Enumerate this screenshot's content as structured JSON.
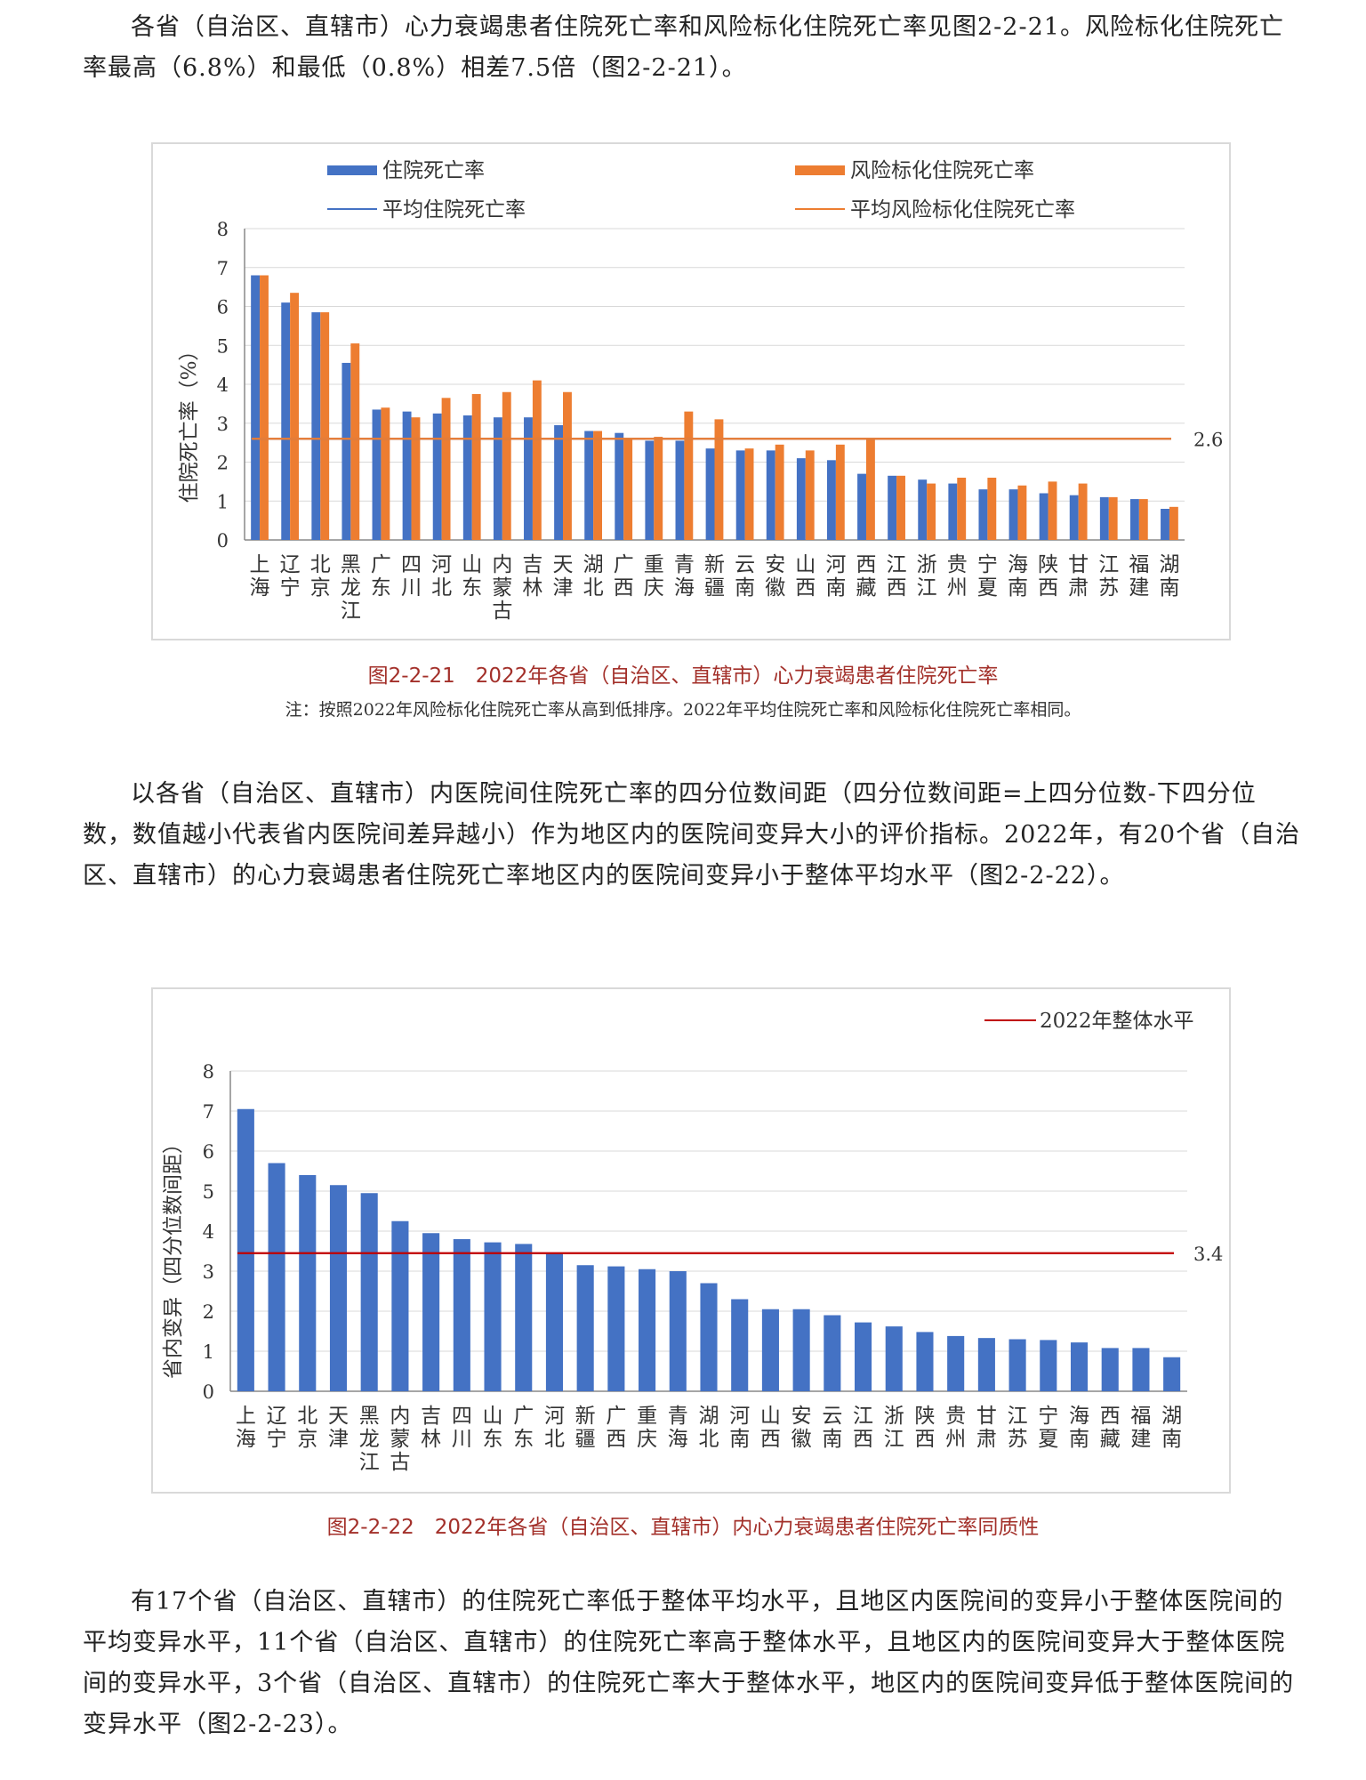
{
  "paragraphs": {
    "p1": "各省（自治区、直辖市）心力衰竭患者住院死亡率和风险标化住院死亡率见图2-2-21。风险标化住院死亡率最高（6.8%）和最低（0.8%）相差7.5倍（图2-2-21）。",
    "p2": "以各省（自治区、直辖市）内医院间住院死亡率的四分位数间距（四分位数间距=上四分位数-下四分位数，数值越小代表省内医院间差异越小）作为地区内的医院间变异大小的评价指标。2022年，有20个省（自治区、直辖市）的心力衰竭患者住院死亡率地区内的医院间变异小于整体平均水平（图2-2-22）。",
    "p3": "有17个省（自治区、直辖市）的住院死亡率低于整体平均水平，且地区内医院间的变异小于整体医院间的平均变异水平，11个省（自治区、直辖市）的住院死亡率高于整体水平，且地区内的医院间变异大于整体医院间的变异水平，3个省（自治区、直辖市）的住院死亡率大于整体水平，地区内的医院间变异低于整体医院间的变异水平（图2-2-23）。"
  },
  "figure1": {
    "caption": "图2-2-21　2022年各省（自治区、直辖市）心力衰竭患者住院死亡率",
    "note": "注：按照2022年风险标化住院死亡率从高到低排序。2022年平均住院死亡率和风险标化住院死亡率相同。"
  },
  "figure2": {
    "caption": "图2-2-22　2022年各省（自治区、直辖市）内心力衰竭患者住院死亡率同质性"
  },
  "colors": {
    "blue": "#4472c4",
    "orange": "#ed7d31",
    "red": "#c00000",
    "caption": "#a3302a"
  },
  "chart_data": [
    {
      "type": "bar",
      "ylabel": "住院死亡率（%）",
      "ylim": [
        0,
        8
      ],
      "yticks": [
        0,
        1,
        2,
        3,
        4,
        5,
        6,
        7,
        8
      ],
      "grid": true,
      "legend_position": "top",
      "categories": [
        "上海",
        "辽宁",
        "北京",
        "黑龙江",
        "广东",
        "四川",
        "河北",
        "山东",
        "内蒙古",
        "吉林",
        "天津",
        "湖北",
        "广西",
        "重庆",
        "青海",
        "新疆",
        "云南",
        "安徽",
        "山西",
        "河南",
        "西藏",
        "江西",
        "浙江",
        "贵州",
        "宁夏",
        "海南",
        "陕西",
        "甘肃",
        "江苏",
        "福建",
        "湖南"
      ],
      "series": [
        {
          "name": "住院死亡率",
          "values": [
            6.8,
            6.1,
            5.85,
            4.55,
            3.35,
            3.3,
            3.25,
            3.2,
            3.15,
            3.15,
            2.95,
            2.8,
            2.75,
            2.55,
            2.55,
            2.35,
            2.3,
            2.3,
            2.1,
            2.05,
            1.7,
            1.65,
            1.55,
            1.45,
            1.3,
            1.3,
            1.2,
            1.15,
            1.1,
            1.05,
            0.8
          ]
        },
        {
          "name": "风险标化住院死亡率",
          "values": [
            6.8,
            6.35,
            5.85,
            5.05,
            3.4,
            3.15,
            3.65,
            3.75,
            3.8,
            4.1,
            3.8,
            2.8,
            2.6,
            2.65,
            3.3,
            3.1,
            2.35,
            2.45,
            2.3,
            2.45,
            2.6,
            1.65,
            1.45,
            1.6,
            1.6,
            1.4,
            1.5,
            1.45,
            1.1,
            1.05,
            0.85
          ]
        }
      ],
      "reference_lines": [
        {
          "name": "平均住院死亡率",
          "value": 2.6
        },
        {
          "name": "平均风险标化住院死亡率",
          "value": 2.6,
          "label": "2.6"
        }
      ]
    },
    {
      "type": "bar",
      "ylabel": "省内变异（四分位数间距）",
      "ylim": [
        0,
        8
      ],
      "yticks": [
        0,
        1,
        2,
        3,
        4,
        5,
        6,
        7,
        8
      ],
      "grid": true,
      "legend_position": "top-right",
      "categories": [
        "上海",
        "辽宁",
        "北京",
        "天津",
        "黑龙江",
        "内蒙古",
        "吉林",
        "四川",
        "山东",
        "广东",
        "河北",
        "新疆",
        "广西",
        "重庆",
        "青海",
        "湖北",
        "河南",
        "山西",
        "安徽",
        "云南",
        "江西",
        "浙江",
        "陕西",
        "贵州",
        "甘肃",
        "江苏",
        "宁夏",
        "海南",
        "西藏",
        "福建",
        "湖南"
      ],
      "series": [
        {
          "values": [
            7.05,
            5.7,
            5.4,
            5.15,
            4.95,
            4.25,
            3.95,
            3.8,
            3.72,
            3.68,
            3.45,
            3.15,
            3.12,
            3.05,
            3.0,
            2.7,
            2.3,
            2.05,
            2.05,
            1.9,
            1.72,
            1.62,
            1.48,
            1.38,
            1.33,
            1.3,
            1.28,
            1.22,
            1.08,
            1.08,
            0.85
          ]
        }
      ],
      "reference_lines": [
        {
          "name": "2022年整体水平",
          "value": 3.45,
          "label": "3.4"
        }
      ]
    }
  ]
}
